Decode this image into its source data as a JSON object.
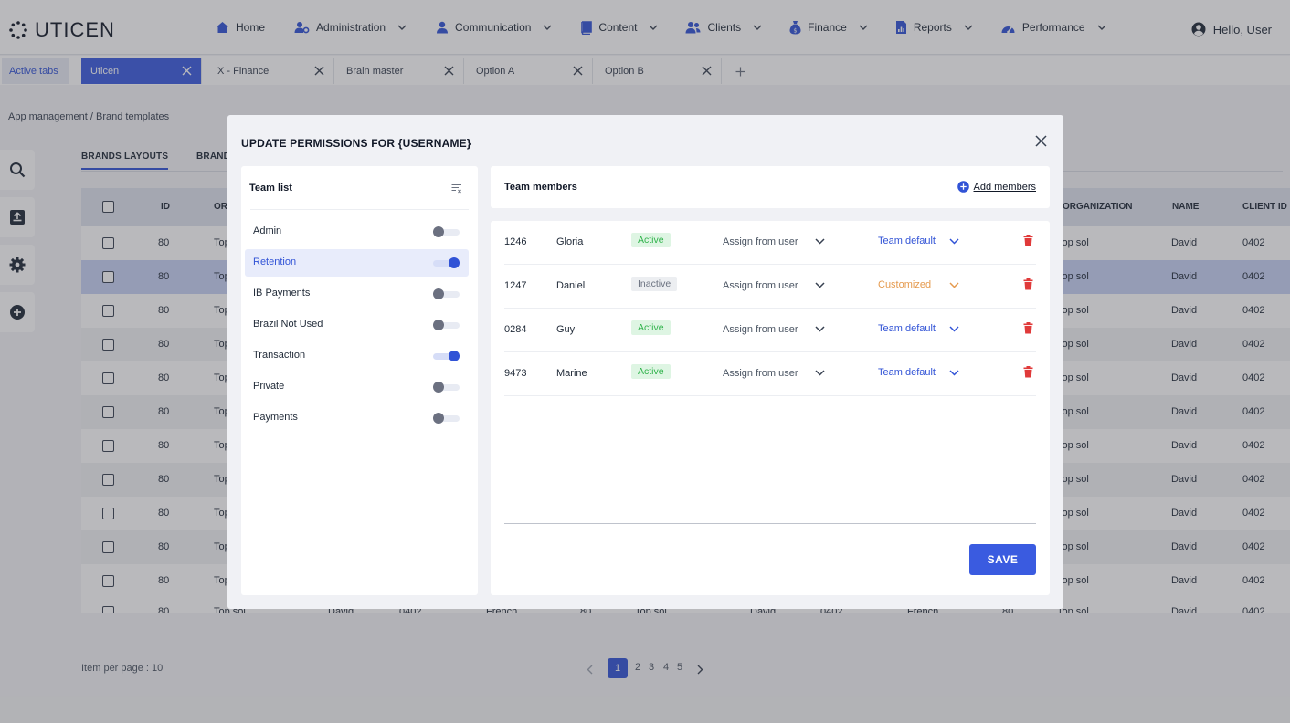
{
  "app": {
    "logo_text": "UTICEN",
    "greeting": "Hello, User"
  },
  "nav": [
    {
      "label": "Home",
      "icon": "home-icon",
      "dropdown": false
    },
    {
      "label": "Administration",
      "icon": "admin-icon",
      "dropdown": true
    },
    {
      "label": "Communication",
      "icon": "communication-icon",
      "dropdown": true
    },
    {
      "label": "Content",
      "icon": "content-icon",
      "dropdown": true
    },
    {
      "label": "Clients",
      "icon": "clients-icon",
      "dropdown": true
    },
    {
      "label": "Finance",
      "icon": "finance-icon",
      "dropdown": true
    },
    {
      "label": "Reports",
      "icon": "reports-icon",
      "dropdown": true
    },
    {
      "label": "Performance",
      "icon": "performance-icon",
      "dropdown": true
    }
  ],
  "tabs": {
    "active_label": "Active tabs",
    "items": [
      {
        "label": "Uticen",
        "selected": true
      },
      {
        "label": "X - Finance",
        "selected": false
      },
      {
        "label": "Brain master",
        "selected": false
      },
      {
        "label": "Option A",
        "selected": false
      },
      {
        "label": "Option B",
        "selected": false
      }
    ]
  },
  "breadcrumb": {
    "parent": "App management",
    "separator": " / ",
    "current": "Brand templates"
  },
  "subtabs": [
    "BRANDS LAYOUTS",
    "BRAND"
  ],
  "table": {
    "headers_left": [
      "ID",
      "OR"
    ],
    "headers_right": [
      "ORGANIZATION",
      "NAME",
      "CLIENT ID"
    ],
    "rows": [
      {
        "id": "80",
        "org": "Top",
        "organization": "Top sol",
        "name": "David",
        "client_id": "0402"
      },
      {
        "id": "80",
        "org": "Top",
        "organization": "Top sol",
        "name": "David",
        "client_id": "0402"
      },
      {
        "id": "80",
        "org": "Top",
        "organization": "Top sol",
        "name": "David",
        "client_id": "0402"
      },
      {
        "id": "80",
        "org": "Top",
        "organization": "Top sol",
        "name": "David",
        "client_id": "0402"
      },
      {
        "id": "80",
        "org": "Top",
        "organization": "Top sol",
        "name": "David",
        "client_id": "0402"
      },
      {
        "id": "80",
        "org": "Top",
        "organization": "Top sol",
        "name": "David",
        "client_id": "0402"
      },
      {
        "id": "80",
        "org": "Top",
        "organization": "Top sol",
        "name": "David",
        "client_id": "0402"
      },
      {
        "id": "80",
        "org": "Top",
        "organization": "Top sol",
        "name": "David",
        "client_id": "0402"
      },
      {
        "id": "80",
        "org": "Top",
        "organization": "Top sol",
        "name": "David",
        "client_id": "0402"
      },
      {
        "id": "80",
        "org": "Top",
        "organization": "Top sol",
        "name": "David",
        "client_id": "0402"
      },
      {
        "id": "80",
        "org": "Top",
        "organization": "Top sol",
        "name": "David",
        "client_id": "0402"
      }
    ],
    "partial_row": [
      "80",
      "Top sol",
      "David",
      "0402",
      "French",
      "80",
      "Top sol",
      "David",
      "0402",
      "French",
      "80",
      "Top sol",
      "David",
      "0402"
    ]
  },
  "pagination": {
    "items_per_page": "Item per page : 10",
    "pages": [
      "1",
      "2",
      "3",
      "4",
      "5"
    ],
    "current": "1"
  },
  "modal": {
    "title": "UPDATE PERMISSIONS FOR {USERNAME}",
    "team_list_title": "Team list",
    "teams": [
      {
        "name": "Admin",
        "on": false,
        "selected": false
      },
      {
        "name": "Retention",
        "on": true,
        "selected": true
      },
      {
        "name": "IB Payments",
        "on": false,
        "selected": false
      },
      {
        "name": "Brazil Not Used",
        "on": false,
        "selected": false
      },
      {
        "name": "Transaction",
        "on": true,
        "selected": false
      },
      {
        "name": "Private",
        "on": false,
        "selected": false
      },
      {
        "name": "Payments",
        "on": false,
        "selected": false
      }
    ],
    "members_title": "Team members",
    "add_members_label": "Add members",
    "members": [
      {
        "id": "1246",
        "name": "Gloria",
        "status": "Active",
        "assign": "Assign from user",
        "permission": "Team default",
        "permission_color": "#3153d6"
      },
      {
        "id": "1247",
        "name": "Daniel",
        "status": "Inactive",
        "assign": "Assign from user",
        "permission": "Customized",
        "permission_color": "#e59a4e"
      },
      {
        "id": "0284",
        "name": "Guy",
        "status": "Active",
        "assign": "Assign from user",
        "permission": "Team default",
        "permission_color": "#3153d6"
      },
      {
        "id": "9473",
        "name": "Marine",
        "status": "Active",
        "assign": "Assign from user",
        "permission": "Team default",
        "permission_color": "#3153d6"
      }
    ],
    "save_label": "SAVE"
  },
  "colors": {
    "accent": "#3a5be0",
    "active_green": "#2fb24a",
    "customized_orange": "#e59a4e",
    "danger": "#e03a3a"
  }
}
